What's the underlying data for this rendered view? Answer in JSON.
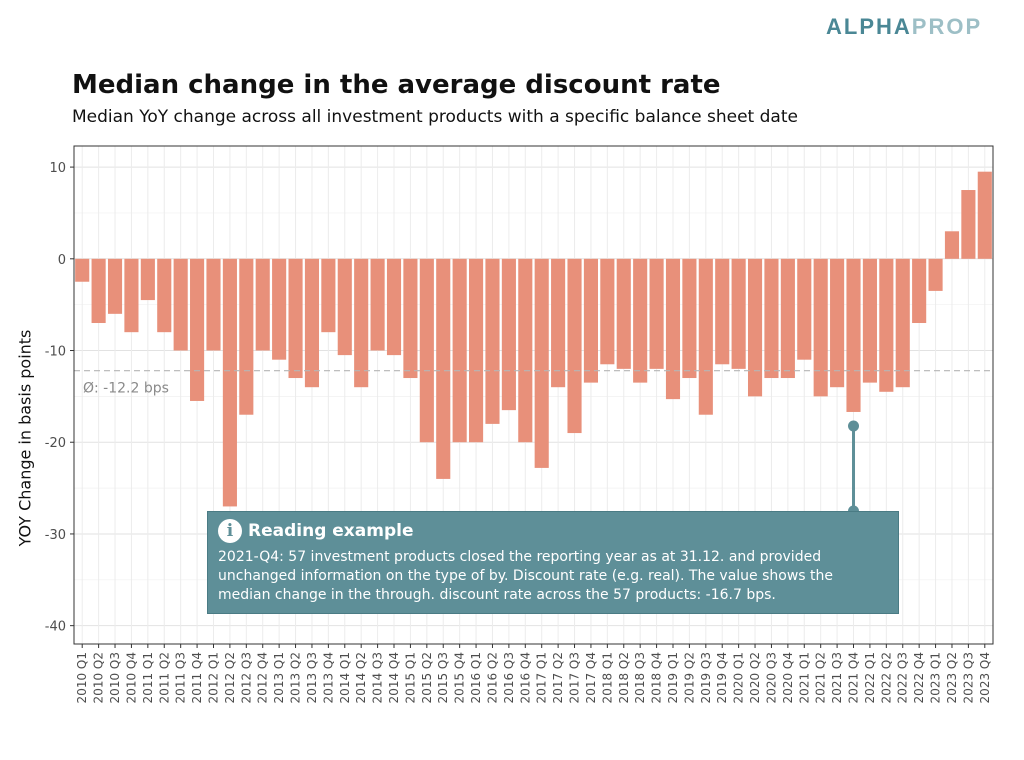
{
  "brand": {
    "part1": "ALPHA",
    "part2": "PROP"
  },
  "chart_data": {
    "type": "bar",
    "title": "Median change in the average discount rate",
    "subtitle": "Median YoY change across all investment products with a specific balance sheet date",
    "ylabel": "YOY Change in basis points",
    "xlabel": "",
    "ylim": [
      -42,
      12.3
    ],
    "yticks": [
      10,
      0,
      -10,
      -20,
      -30,
      -40
    ],
    "grid": true,
    "bar_color": "#e8907a",
    "categories": [
      "2010 Q1",
      "2010 Q2",
      "2010 Q3",
      "2010 Q4",
      "2011 Q1",
      "2011 Q2",
      "2011 Q3",
      "2011 Q4",
      "2012 Q1",
      "2012 Q2",
      "2012 Q3",
      "2012 Q4",
      "2013 Q1",
      "2013 Q2",
      "2013 Q3",
      "2013 Q4",
      "2014 Q1",
      "2014 Q2",
      "2014 Q3",
      "2014 Q4",
      "2015 Q1",
      "2015 Q2",
      "2015 Q3",
      "2015 Q4",
      "2016 Q1",
      "2016 Q2",
      "2016 Q3",
      "2016 Q4",
      "2017 Q1",
      "2017 Q2",
      "2017 Q3",
      "2017 Q4",
      "2018 Q1",
      "2018 Q2",
      "2018 Q3",
      "2018 Q4",
      "2019 Q1",
      "2019 Q2",
      "2019 Q3",
      "2019 Q4",
      "2020 Q1",
      "2020 Q2",
      "2020 Q3",
      "2020 Q4",
      "2021 Q1",
      "2021 Q2",
      "2021 Q3",
      "2021 Q4",
      "2022 Q1",
      "2022 Q2",
      "2022 Q3",
      "2022 Q4",
      "2023 Q1",
      "2023 Q2",
      "2023 Q3",
      "2023 Q4"
    ],
    "values": [
      -2.5,
      -7,
      -6,
      -8,
      -4.5,
      -8,
      -10,
      -15.5,
      -10,
      -27,
      -17,
      -10,
      -11,
      -13,
      -14,
      -8,
      -10.5,
      -14,
      -10,
      -10.5,
      -13,
      -20,
      -24,
      -20,
      -20,
      -18,
      -16.5,
      -20,
      -22.8,
      -14,
      -19,
      -13.5,
      -11.5,
      -12,
      -13.5,
      -12,
      -15.3,
      -13,
      -17,
      -11.5,
      -12,
      -15,
      -13,
      -13,
      -11,
      -15,
      -14,
      -16.7,
      -13.5,
      -14.5,
      -14,
      -7,
      -3.5,
      3,
      7.5,
      9.5
    ],
    "mean_line": {
      "value": -12.2,
      "label": "Ø: -12.2 bps"
    },
    "callout": {
      "category": "2021 Q4",
      "title": "Reading example",
      "text": "2021-Q4: 57 investment products closed the reporting year as at 31.12. and provided unchanged information on the type of by. Discount rate (e.g. real). The value shows the median change in the through. discount rate across the 57 products: -16.7 bps.",
      "icon": "info-icon",
      "color": "#5e8f98"
    }
  }
}
